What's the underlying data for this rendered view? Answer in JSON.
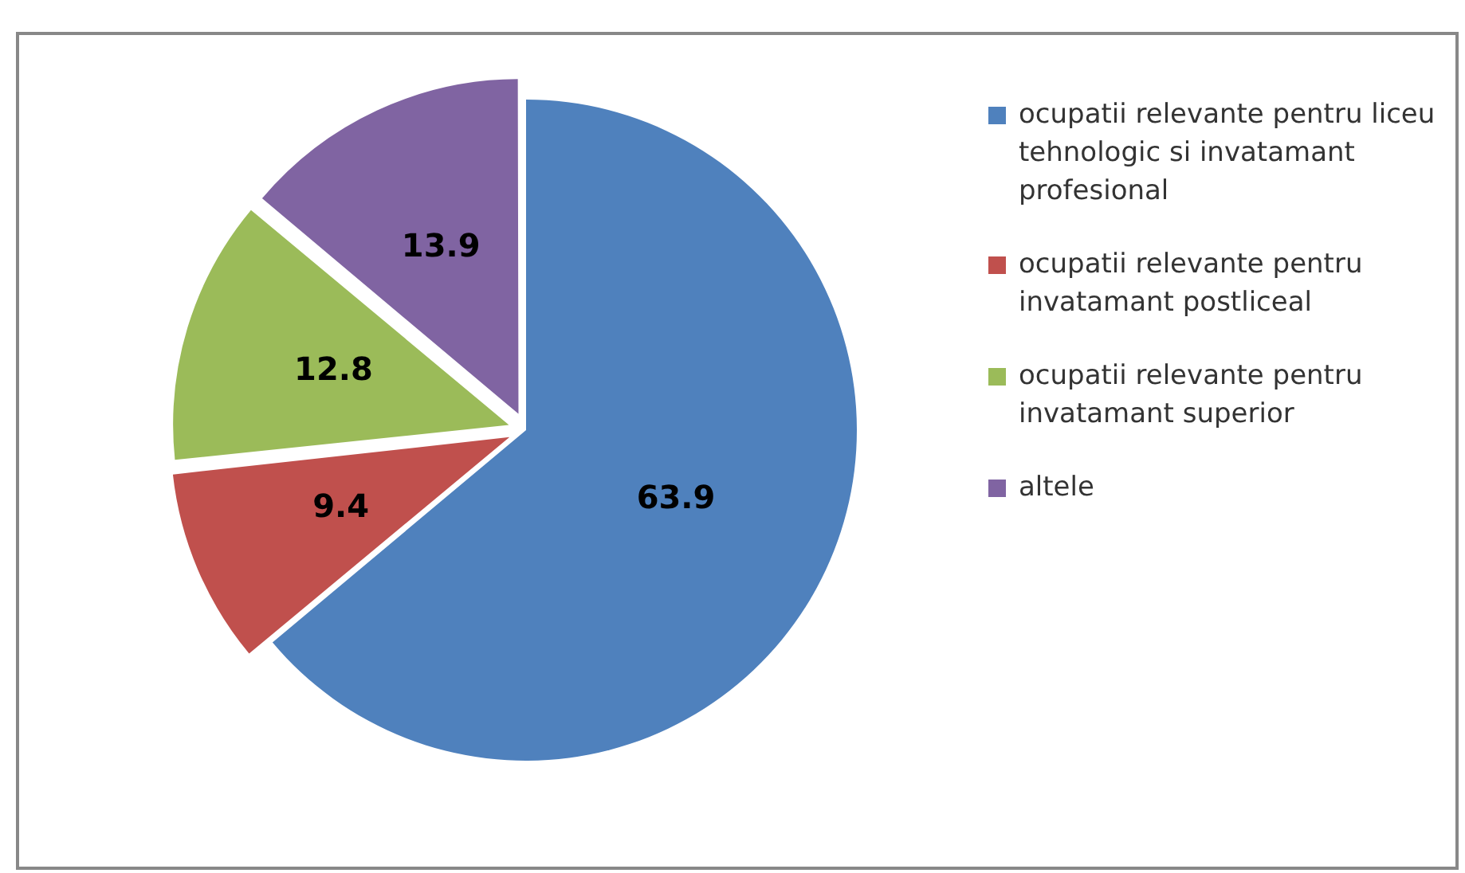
{
  "chart_data": {
    "type": "pie",
    "categories": [
      "ocupatii relevante pentru liceu tehnologic si invatamant profesional",
      "ocupatii relevante pentru invatamant postliceal",
      "ocupatii relevante pentru invatamant superior",
      "altele"
    ],
    "values": [
      63.9,
      9.4,
      12.8,
      13.9
    ],
    "colors": [
      "#4f81bd",
      "#c0504d",
      "#9bbb59",
      "#8064a2"
    ],
    "data_labels": true,
    "legend": "right"
  }
}
